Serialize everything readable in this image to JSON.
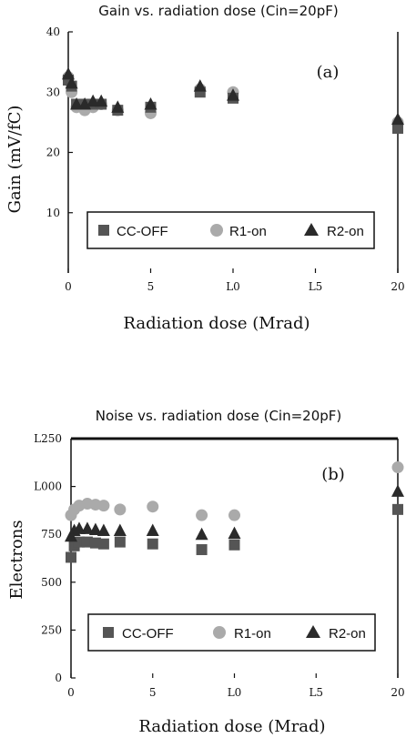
{
  "chart_data": [
    {
      "type": "scatter",
      "title": "Gain vs. radiation dose (Cin=20pF)",
      "xlabel": "Radiation dose (Mrad)",
      "ylabel": "Gain (mV/fC)",
      "xlim": [
        0,
        20
      ],
      "ylim": [
        0,
        40
      ],
      "xticks": [
        0,
        5,
        10,
        15,
        20
      ],
      "xtick_labels": [
        "0",
        "5",
        "L0",
        "L5",
        "20"
      ],
      "yticks": [
        10,
        20,
        30,
        40
      ],
      "ytick_labels": [
        "10",
        "20",
        "30",
        "40"
      ],
      "panel_label": "(a)",
      "legend_position": "bottom",
      "series": [
        {
          "name": "CC-OFF",
          "marker": "square",
          "color": "#555555",
          "x": [
            0,
            0.2,
            0.5,
            1,
            1.5,
            2,
            3,
            5,
            8,
            10,
            20
          ],
          "y": [
            32,
            31,
            28,
            28,
            28,
            28,
            27,
            27.5,
            30,
            29,
            24
          ]
        },
        {
          "name": "R1-on",
          "marker": "circle",
          "color": "#aaaaaa",
          "x": [
            0,
            0.2,
            0.5,
            1,
            1.5,
            2,
            3,
            5,
            8,
            10,
            20
          ],
          "y": [
            32.5,
            30,
            27.5,
            27,
            27.5,
            28,
            27,
            26.5,
            30.5,
            30,
            25
          ]
        },
        {
          "name": "R2-on",
          "marker": "triangle",
          "color": "#2a2a2a",
          "x": [
            0,
            0.2,
            0.5,
            1,
            1.5,
            2,
            3,
            5,
            8,
            10,
            20
          ],
          "y": [
            33,
            31.5,
            28,
            28,
            28.5,
            28.5,
            27.5,
            28,
            31,
            29.5,
            25.5
          ]
        }
      ]
    },
    {
      "type": "scatter",
      "title": "Noise vs. radiation dose (Cin=20pF)",
      "xlabel": "Radiation dose (Mrad)",
      "ylabel": "Electrons",
      "xlim": [
        0,
        20
      ],
      "ylim": [
        0,
        1250
      ],
      "xticks": [
        0,
        5,
        10,
        15,
        20
      ],
      "xtick_labels": [
        "0",
        "5",
        "L0",
        "L5",
        "20"
      ],
      "yticks": [
        0,
        250,
        500,
        750,
        1000,
        1250
      ],
      "ytick_labels": [
        "0",
        "250",
        "500",
        "750",
        "L000",
        "L250"
      ],
      "panel_label": "(b)",
      "legend_position": "bottom",
      "series": [
        {
          "name": "CC-OFF",
          "marker": "square",
          "color": "#555555",
          "x": [
            0,
            0.2,
            0.5,
            1,
            1.5,
            2,
            3,
            5,
            8,
            10,
            20
          ],
          "y": [
            630,
            690,
            710,
            710,
            705,
            700,
            710,
            700,
            670,
            695,
            880
          ]
        },
        {
          "name": "R1-on",
          "marker": "circle",
          "color": "#aaaaaa",
          "x": [
            0,
            0.2,
            0.5,
            1,
            1.5,
            2,
            3,
            5,
            8,
            10,
            20
          ],
          "y": [
            850,
            880,
            900,
            910,
            905,
            900,
            880,
            895,
            850,
            850,
            1100
          ]
        },
        {
          "name": "R2-on",
          "marker": "triangle",
          "color": "#2a2a2a",
          "x": [
            0,
            0.2,
            0.5,
            1,
            1.5,
            2,
            3,
            5,
            8,
            10,
            20
          ],
          "y": [
            740,
            770,
            780,
            780,
            775,
            770,
            770,
            770,
            750,
            755,
            975
          ]
        }
      ]
    }
  ]
}
